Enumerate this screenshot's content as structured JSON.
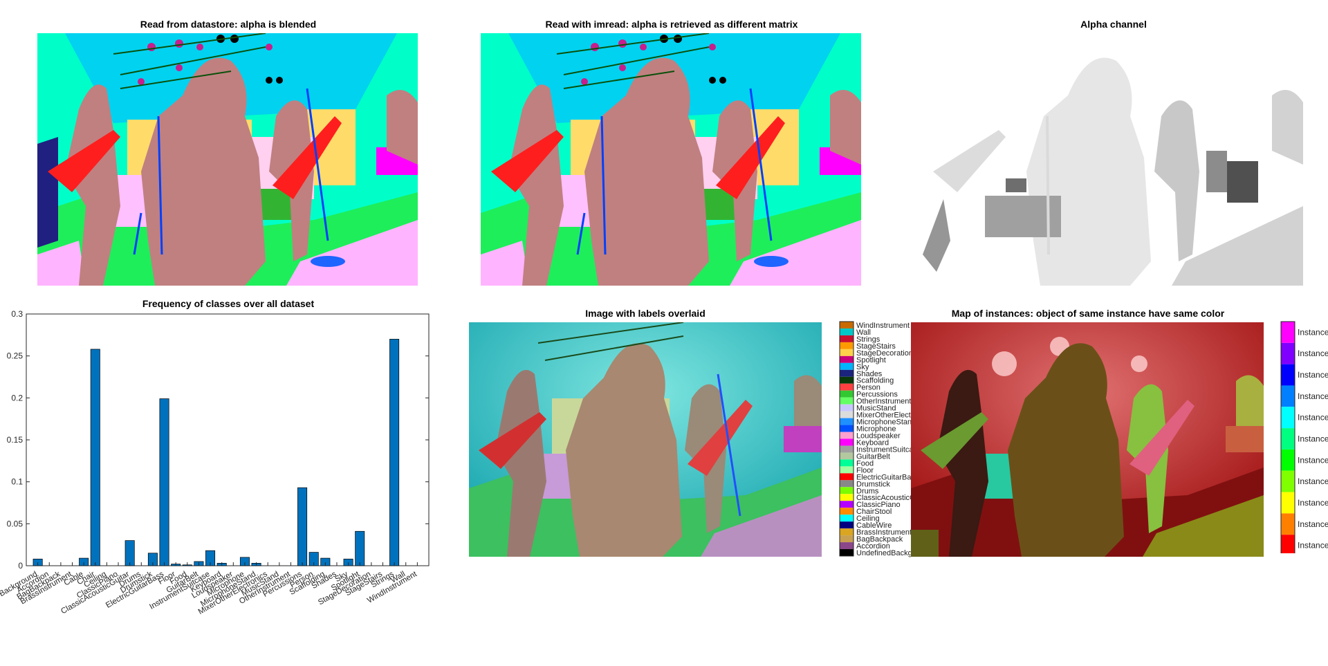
{
  "panels": {
    "datastore": {
      "title": "Read from datastore: alpha is blended"
    },
    "imread": {
      "title": "Read with imread: alpha is retrieved as different matrix"
    },
    "alpha": {
      "title": "Alpha channel"
    },
    "overlay": {
      "title": "Image with labels overlaid"
    },
    "instances": {
      "title": "Map of instances: object of same instance have same color"
    }
  },
  "chart_data": {
    "type": "bar",
    "title": "Frequency of classes over all dataset",
    "xlabel": "",
    "ylabel": "",
    "ylim": [
      0,
      0.3
    ],
    "yticks": [
      0,
      0.05,
      0.1,
      0.15,
      0.2,
      0.25,
      0.3
    ],
    "ytick_labels": [
      "0",
      "0.05",
      "0.1",
      "0.15",
      "0.2",
      "0.25",
      "0.3"
    ],
    "bar_color": "#0072BD",
    "categories": [
      "Background",
      "Accordion",
      "BagBackpack",
      "BrassInstrument",
      "Cable",
      "Chair",
      "Ceiling",
      "ClassicPiano",
      "ClassicAcousticGuitar",
      "Drums",
      "Drumstick",
      "ElectricGuitarBass",
      "Floor",
      "Food",
      "GuitarBelt",
      "InstrumentSuitcase",
      "Keyboard",
      "Loudspeaker",
      "Microphone",
      "MicrophoneStand",
      "MixerOtherElectronics",
      "MusicStand",
      "OtherInstrument",
      "Percussions",
      "Person",
      "Scaffolding",
      "Shades",
      "Sky",
      "Spotlight",
      "StageDecoration",
      "StageStairs",
      "Strings",
      "Wall",
      "WindInstrument"
    ],
    "values": [
      0.008,
      0,
      0,
      0,
      0.009,
      0.258,
      0,
      0,
      0.03,
      0,
      0.015,
      0.199,
      0.002,
      0.001,
      0.005,
      0.018,
      0.003,
      0,
      0.01,
      0.003,
      0,
      0,
      0,
      0.093,
      0.016,
      0.009,
      0,
      0.008,
      0.041,
      0,
      0,
      0.27,
      0,
      0
    ]
  },
  "labels_legend": {
    "items": [
      "WindInstrument",
      "Wall",
      "Strings",
      "StageStairs",
      "StageDecoration",
      "Spotlight",
      "Sky",
      "Shades",
      "Scaffolding",
      "Person",
      "Percussions",
      "OtherInstrument",
      "MusicStand",
      "MixerOtherElectronics",
      "MicrophoneStand",
      "Microphone",
      "Loudspeaker",
      "Keyboard",
      "InstrumentSuitcase",
      "GuitarBelt",
      "Food",
      "Floor",
      "ElectricGuitarBass",
      "Drumstick",
      "Drums",
      "ClassicAcousticGuitar",
      "ClassicPiano",
      "ChairStool",
      "Ceiling",
      "CableWire",
      "BrassInstrument",
      "BagBackpack",
      "Accordion",
      "UndefinedBackground"
    ],
    "colors": [
      "#c86a00",
      "#00c8c8",
      "#c8102e",
      "#ff9a00",
      "#ffd24a",
      "#c8007a",
      "#00b4ff",
      "#1a237e",
      "#0a3a0a",
      "#ff4040",
      "#32c832",
      "#64ff64",
      "#c8c8ff",
      "#dcdcdc",
      "#1e90ff",
      "#0050ff",
      "#ffa0d0",
      "#ff00ff",
      "#a0a0a0",
      "#b4c8a0",
      "#00ff96",
      "#a0ffa0",
      "#ff0000",
      "#888888",
      "#7cfc00",
      "#ffff00",
      "#b400ff",
      "#ff8c00",
      "#00ffff",
      "#000080",
      "#daa520",
      "#c8a050",
      "#8b4789",
      "#000000"
    ]
  },
  "instance_legend": {
    "items": [
      "Instance",
      "Instance",
      "Instance",
      "Instance",
      "Instance",
      "Instance",
      "Instance",
      "Instance",
      "Instance",
      "Instance",
      "Instance"
    ],
    "colors": [
      "#ff00ff",
      "#8000ff",
      "#0000ff",
      "#0080ff",
      "#00ffff",
      "#00ff80",
      "#00ff00",
      "#80ff00",
      "#ffff00",
      "#ff8000",
      "#ff0000"
    ]
  }
}
